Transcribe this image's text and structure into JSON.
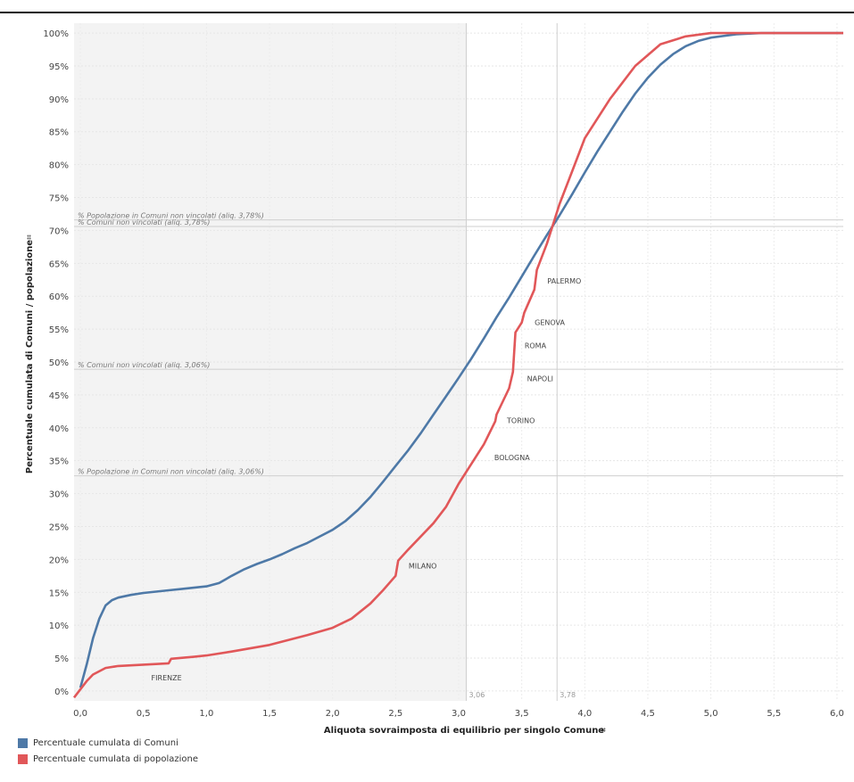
{
  "chart_data": {
    "type": "line",
    "xlabel": "Aliquota sovraimposta di equilibrio per singolo Comune",
    "xlabel_icon": "sort-icon",
    "ylabel": "Percentuale cumulata di Comuni / popolazione",
    "ylabel_icon": "sort-icon",
    "xlim": [
      -0.05,
      6.05
    ],
    "ylim": [
      -1.5,
      101.5
    ],
    "x_ticks": [
      "0,0",
      "0,5",
      "1,0",
      "1,5",
      "2,0",
      "2,5",
      "3,0",
      "3,5",
      "4,0",
      "4,5",
      "5,0",
      "5,5",
      "6,0"
    ],
    "x_tick_values": [
      0,
      0.5,
      1,
      1.5,
      2,
      2.5,
      3,
      3.5,
      4,
      4.5,
      5,
      5.5,
      6
    ],
    "y_ticks": [
      "0%",
      "5%",
      "10%",
      "15%",
      "20%",
      "25%",
      "30%",
      "35%",
      "40%",
      "45%",
      "50%",
      "55%",
      "60%",
      "65%",
      "70%",
      "75%",
      "80%",
      "85%",
      "90%",
      "95%",
      "100%"
    ],
    "y_tick_values": [
      0,
      5,
      10,
      15,
      20,
      25,
      30,
      35,
      40,
      45,
      50,
      55,
      60,
      65,
      70,
      75,
      80,
      85,
      90,
      95,
      100
    ],
    "grid": true,
    "legend_position": "bottom-left",
    "shaded_region": {
      "x_from": -0.05,
      "x_to": 3.06,
      "color": "#f3f3f3"
    },
    "vertical_refs": [
      {
        "x": 3.06,
        "label": "3,06"
      },
      {
        "x": 3.78,
        "label": "3,78"
      }
    ],
    "horizontal_refs": [
      {
        "y": 71.6,
        "label": "% Popolazione in Comuni non vincolati (aliq. 3,78%)"
      },
      {
        "y": 70.6,
        "label": "% Comuni non vincolati (aliq. 3,78%)"
      },
      {
        "y": 48.9,
        "label": "% Comuni non vincolati (aliq. 3,06%)"
      },
      {
        "y": 32.7,
        "label": "% Popolazione in Comuni non vincolati (aliq. 3,06%)"
      }
    ],
    "series": [
      {
        "name": "Percentuale cumulata di Comuni",
        "color": "#4e79a7",
        "x": [
          0.0,
          0.05,
          0.1,
          0.15,
          0.2,
          0.25,
          0.3,
          0.4,
          0.5,
          0.6,
          0.7,
          0.8,
          0.9,
          1.0,
          1.1,
          1.2,
          1.3,
          1.4,
          1.5,
          1.6,
          1.7,
          1.8,
          1.9,
          2.0,
          2.1,
          2.2,
          2.3,
          2.4,
          2.5,
          2.6,
          2.7,
          2.8,
          2.9,
          3.0,
          3.1,
          3.2,
          3.3,
          3.4,
          3.5,
          3.6,
          3.7,
          3.8,
          3.9,
          4.0,
          4.1,
          4.2,
          4.3,
          4.4,
          4.5,
          4.6,
          4.7,
          4.8,
          4.9,
          5.0,
          5.2,
          5.4,
          5.6,
          5.8,
          6.05
        ],
        "y": [
          0.5,
          4,
          8,
          11,
          13,
          13.8,
          14.2,
          14.6,
          14.9,
          15.1,
          15.3,
          15.5,
          15.7,
          15.9,
          16.4,
          17.5,
          18.5,
          19.3,
          20.0,
          20.8,
          21.7,
          22.5,
          23.5,
          24.5,
          25.8,
          27.5,
          29.5,
          31.8,
          34.2,
          36.6,
          39.2,
          42.0,
          44.8,
          47.6,
          50.5,
          53.6,
          56.8,
          59.8,
          63.0,
          66.2,
          69.3,
          72.3,
          75.5,
          78.8,
          82.0,
          85.0,
          88.0,
          90.8,
          93.2,
          95.2,
          96.8,
          98.0,
          98.8,
          99.3,
          99.8,
          100,
          100,
          100,
          100
        ]
      },
      {
        "name": "Percentuale cumulata di popolazione",
        "color": "#e15759",
        "x": [
          -0.05,
          0.05,
          0.1,
          0.2,
          0.3,
          0.5,
          0.7,
          0.72,
          0.9,
          1.0,
          1.2,
          1.5,
          1.8,
          2.0,
          2.15,
          2.3,
          2.4,
          2.5,
          2.52,
          2.6,
          2.8,
          2.9,
          3.0,
          3.1,
          3.2,
          3.29,
          3.3,
          3.4,
          3.43,
          3.45,
          3.5,
          3.52,
          3.6,
          3.62,
          3.7,
          3.8,
          3.9,
          4.0,
          4.2,
          4.4,
          4.6,
          4.8,
          5.0,
          5.2,
          5.5,
          6.05
        ],
        "y": [
          -1,
          1.5,
          2.5,
          3.5,
          3.8,
          4.0,
          4.2,
          4.9,
          5.2,
          5.4,
          6.0,
          7.0,
          8.5,
          9.6,
          11.0,
          13.3,
          15.3,
          17.5,
          19.8,
          21.5,
          25.5,
          28.0,
          31.5,
          34.5,
          37.5,
          41.0,
          42.0,
          46.0,
          48.5,
          54.5,
          56.0,
          57.5,
          61.0,
          64.0,
          68.0,
          74.0,
          79.0,
          84.0,
          90.0,
          95.0,
          98.3,
          99.5,
          100,
          100,
          100,
          100
        ]
      }
    ],
    "annotations": [
      {
        "text": "FIRENZE",
        "x": 0.52,
        "y": 2.0
      },
      {
        "text": "MILANO",
        "x": 2.56,
        "y": 19.0
      },
      {
        "text": "BOLOGNA",
        "x": 3.24,
        "y": 35.5
      },
      {
        "text": "TORINO",
        "x": 3.34,
        "y": 41.1
      },
      {
        "text": "NAPOLI",
        "x": 3.5,
        "y": 47.5
      },
      {
        "text": "ROMA",
        "x": 3.48,
        "y": 52.5
      },
      {
        "text": "GENOVA",
        "x": 3.56,
        "y": 56.0
      },
      {
        "text": "PALERMO",
        "x": 3.66,
        "y": 62.3
      }
    ]
  }
}
